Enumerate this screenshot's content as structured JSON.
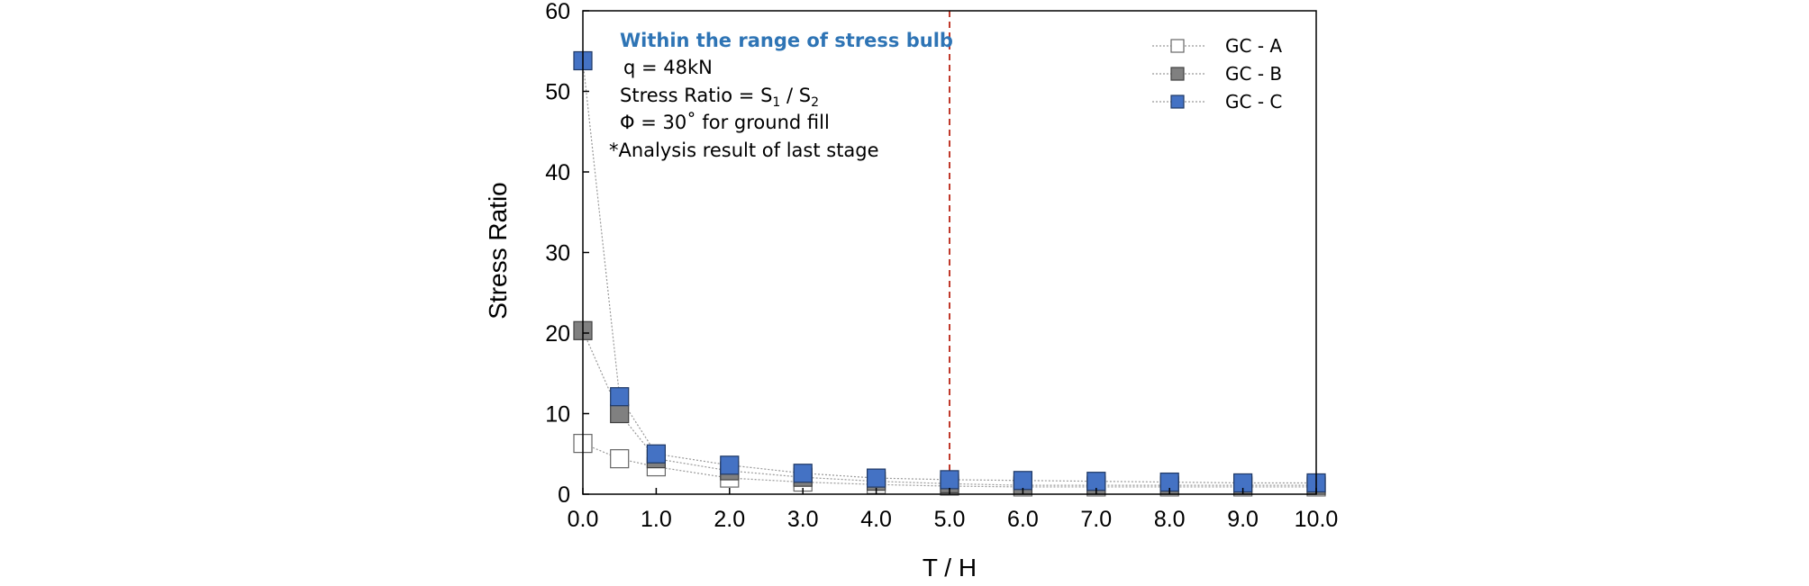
{
  "chart_data": {
    "type": "scatter",
    "xlabel": "T / H",
    "ylabel": "Stress  Ratio",
    "xlim": [
      0,
      10
    ],
    "ylim": [
      0,
      60
    ],
    "xticks": [
      "0.0",
      "1.0",
      "2.0",
      "3.0",
      "4.0",
      "5.0",
      "6.0",
      "7.0",
      "8.0",
      "9.0",
      "10.0"
    ],
    "yticks": [
      "0",
      "10",
      "20",
      "30",
      "40",
      "50",
      "60"
    ],
    "reference_line": {
      "x": 5.0,
      "color": "#c0392b",
      "style": "dashed"
    },
    "annotation": {
      "title": "Within the range of stress bulb",
      "title_color": "#2e74b5",
      "lines": [
        [
          "q = 48kN"
        ],
        [
          "Stress Ratio = S",
          "1",
          " / S",
          "2"
        ],
        [
          "Φ = 30˚ for ground fill"
        ],
        [
          "*Analysis result of  last stage"
        ]
      ]
    },
    "legend_position": "top-right",
    "x": [
      0.0,
      0.5,
      1.0,
      2.0,
      3.0,
      4.0,
      5.0,
      6.0,
      7.0,
      8.0,
      9.0,
      10.0
    ],
    "series": [
      {
        "name": "GC - A",
        "fill": "#ffffff",
        "stroke": "#666666",
        "values": [
          6.3,
          4.4,
          3.4,
          2.0,
          1.5,
          1.2,
          1.0,
          0.9,
          0.9,
          0.9,
          0.9,
          0.9
        ]
      },
      {
        "name": "GC - B",
        "fill": "#808080",
        "stroke": "#404040",
        "values": [
          20.3,
          10.0,
          4.4,
          2.9,
          2.1,
          1.6,
          1.3,
          1.1,
          1.1,
          1.1,
          1.1,
          1.1
        ]
      },
      {
        "name": "GC - C",
        "fill": "#4472c4",
        "stroke": "#1f3864",
        "values": [
          53.8,
          12.1,
          5.0,
          3.6,
          2.6,
          2.0,
          1.8,
          1.7,
          1.6,
          1.5,
          1.4,
          1.4
        ]
      }
    ]
  }
}
